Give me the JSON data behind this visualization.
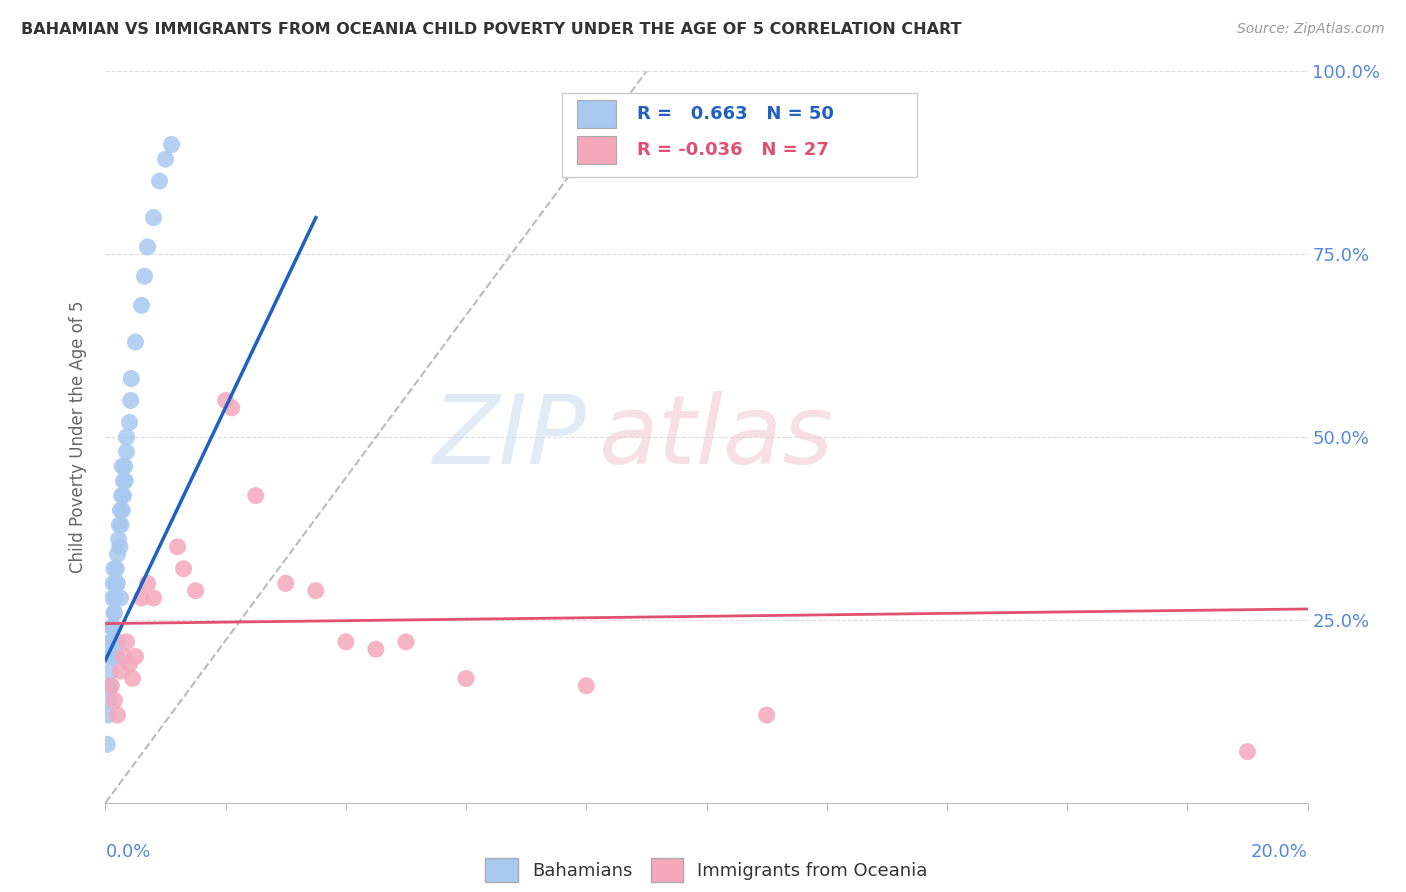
{
  "title": "BAHAMIAN VS IMMIGRANTS FROM OCEANIA CHILD POVERTY UNDER THE AGE OF 5 CORRELATION CHART",
  "source": "Source: ZipAtlas.com",
  "ylabel": "Child Poverty Under the Age of 5",
  "xmin": 0.0,
  "xmax": 0.2,
  "ymin": 0.0,
  "ymax": 1.0,
  "R_blue": 0.663,
  "N_blue": 50,
  "R_pink": -0.036,
  "N_pink": 27,
  "blue_scatter_color": "#A8C8F0",
  "pink_scatter_color": "#F5A8BC",
  "blue_line_color": "#2060C0",
  "pink_line_color": "#E05070",
  "ref_line_color": "#BBBBBB",
  "axis_label_color": "#5588DD",
  "grid_color": "#DDDDDD",
  "background_color": "#FFFFFF",
  "yticks": [
    0.25,
    0.5,
    0.75,
    1.0
  ],
  "ytick_labels_right": [
    "25.0%",
    "50.0%",
    "75.0%",
    "100.0%"
  ],
  "blue_scatter": [
    [
      0.0008,
      0.22
    ],
    [
      0.0008,
      0.2
    ],
    [
      0.001,
      0.24
    ],
    [
      0.0012,
      0.28
    ],
    [
      0.0013,
      0.3
    ],
    [
      0.0014,
      0.32
    ],
    [
      0.0015,
      0.26
    ],
    [
      0.0016,
      0.28
    ],
    [
      0.0017,
      0.3
    ],
    [
      0.0018,
      0.32
    ],
    [
      0.002,
      0.34
    ],
    [
      0.002,
      0.3
    ],
    [
      0.0022,
      0.36
    ],
    [
      0.0023,
      0.38
    ],
    [
      0.0024,
      0.35
    ],
    [
      0.0025,
      0.4
    ],
    [
      0.0026,
      0.38
    ],
    [
      0.0027,
      0.42
    ],
    [
      0.0028,
      0.4
    ],
    [
      0.003,
      0.44
    ],
    [
      0.003,
      0.42
    ],
    [
      0.0032,
      0.46
    ],
    [
      0.0033,
      0.44
    ],
    [
      0.0035,
      0.48
    ],
    [
      0.0008,
      0.16
    ],
    [
      0.0009,
      0.18
    ],
    [
      0.001,
      0.2
    ],
    [
      0.0012,
      0.22
    ],
    [
      0.0013,
      0.24
    ],
    [
      0.0014,
      0.26
    ],
    [
      0.0006,
      0.14
    ],
    [
      0.0007,
      0.16
    ],
    [
      0.0005,
      0.12
    ],
    [
      0.004,
      0.52
    ],
    [
      0.0042,
      0.55
    ],
    [
      0.0043,
      0.58
    ],
    [
      0.002,
      0.22
    ],
    [
      0.0025,
      0.28
    ],
    [
      0.0018,
      0.2
    ],
    [
      0.006,
      0.68
    ],
    [
      0.0065,
      0.72
    ],
    [
      0.007,
      0.76
    ],
    [
      0.008,
      0.8
    ],
    [
      0.005,
      0.63
    ],
    [
      0.009,
      0.85
    ],
    [
      0.01,
      0.88
    ],
    [
      0.0035,
      0.5
    ],
    [
      0.0028,
      0.46
    ],
    [
      0.0003,
      0.08
    ],
    [
      0.011,
      0.9
    ]
  ],
  "pink_scatter": [
    [
      0.001,
      0.16
    ],
    [
      0.0015,
      0.14
    ],
    [
      0.002,
      0.12
    ],
    [
      0.0025,
      0.18
    ],
    [
      0.003,
      0.2
    ],
    [
      0.0035,
      0.22
    ],
    [
      0.004,
      0.19
    ],
    [
      0.0045,
      0.17
    ],
    [
      0.005,
      0.2
    ],
    [
      0.006,
      0.28
    ],
    [
      0.007,
      0.3
    ],
    [
      0.008,
      0.28
    ],
    [
      0.012,
      0.35
    ],
    [
      0.013,
      0.32
    ],
    [
      0.015,
      0.29
    ],
    [
      0.02,
      0.55
    ],
    [
      0.021,
      0.54
    ],
    [
      0.025,
      0.42
    ],
    [
      0.03,
      0.3
    ],
    [
      0.035,
      0.29
    ],
    [
      0.04,
      0.22
    ],
    [
      0.045,
      0.21
    ],
    [
      0.05,
      0.22
    ],
    [
      0.06,
      0.17
    ],
    [
      0.08,
      0.16
    ],
    [
      0.11,
      0.12
    ],
    [
      0.19,
      0.07
    ]
  ],
  "blue_trend_x": [
    0.0,
    0.035
  ],
  "pink_trend_x": [
    0.0,
    0.2
  ],
  "blue_trend_y": [
    0.195,
    0.8
  ],
  "pink_trend_y": [
    0.245,
    0.265
  ],
  "ref_line_x": [
    0.0,
    0.09
  ],
  "ref_line_y": [
    0.0,
    1.0
  ]
}
